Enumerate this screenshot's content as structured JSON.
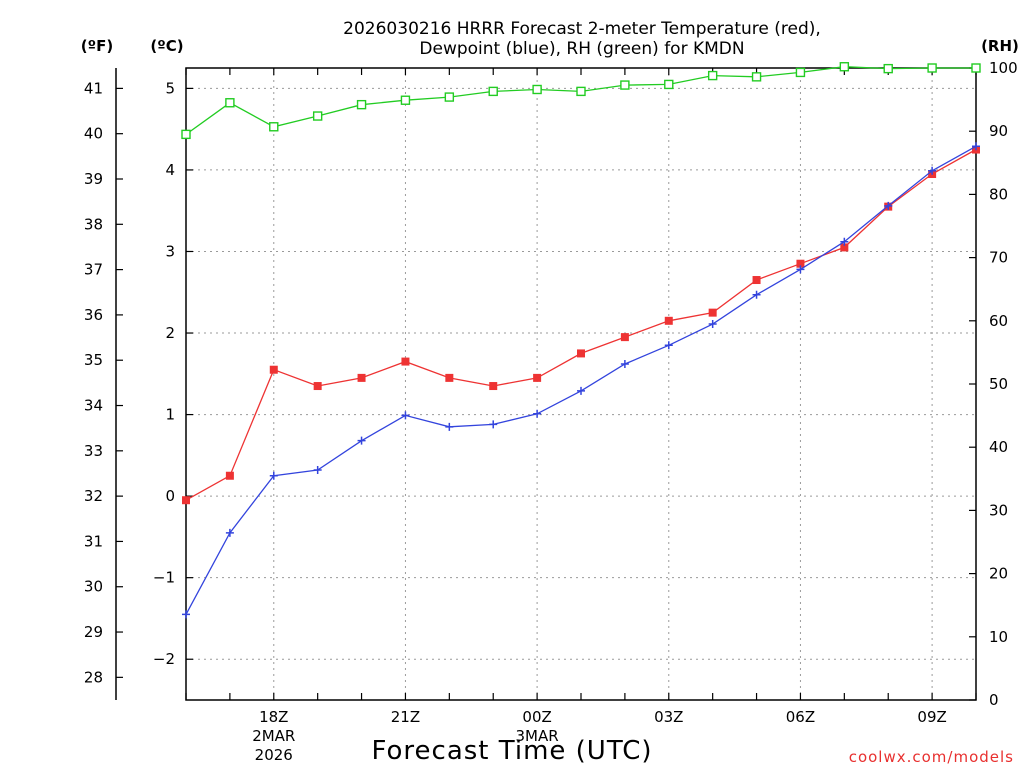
{
  "chart_data": {
    "type": "line",
    "title_lines": [
      "2026030216 HRRR Forecast 2-meter Temperature (red),",
      "Dewpoint (blue), RH (green) for KMDN"
    ],
    "xlabel": "Forecast Time (UTC)",
    "x_hours": [
      16,
      17,
      18,
      19,
      20,
      21,
      22,
      23,
      24,
      25,
      26,
      27,
      28,
      29,
      30,
      31,
      32,
      33,
      34
    ],
    "xlim": [
      16,
      34
    ],
    "x_ticks": [
      {
        "hour": 18,
        "lines": [
          "18Z",
          "2MAR",
          "2026"
        ]
      },
      {
        "hour": 21,
        "lines": [
          "21Z"
        ]
      },
      {
        "hour": 24,
        "lines": [
          "00Z",
          "3MAR"
        ]
      },
      {
        "hour": 27,
        "lines": [
          "03Z"
        ]
      },
      {
        "hour": 30,
        "lines": [
          "06Z"
        ]
      },
      {
        "hour": 33,
        "lines": [
          "09Z"
        ]
      }
    ],
    "axes": {
      "celsius": {
        "unit_label": "(ºC)",
        "range": [
          -2.5,
          5.25
        ],
        "ticks": [
          -2,
          -1,
          0,
          1,
          2,
          3,
          4,
          5
        ]
      },
      "fahrenheit": {
        "unit_label": "(ºF)",
        "ticks": [
          28,
          29,
          30,
          31,
          32,
          33,
          34,
          35,
          36,
          37,
          38,
          39,
          40,
          41
        ]
      },
      "rh": {
        "unit_label": "(RH)",
        "range": [
          0,
          100
        ],
        "ticks": [
          0,
          10,
          20,
          30,
          40,
          50,
          60,
          70,
          80,
          90,
          100
        ]
      }
    },
    "series": [
      {
        "name": "Temperature",
        "axis": "celsius",
        "color": "#ee3333",
        "marker": "filled-square",
        "values": [
          -0.05,
          0.25,
          1.55,
          1.35,
          1.45,
          1.65,
          1.45,
          1.35,
          1.45,
          1.75,
          1.95,
          2.15,
          2.25,
          2.65,
          2.85,
          3.05,
          3.55,
          3.95,
          4.25
        ]
      },
      {
        "name": "Dewpoint",
        "axis": "celsius",
        "color": "#3344dd",
        "marker": "plus",
        "values": [
          -1.45,
          -0.45,
          0.25,
          0.32,
          0.68,
          0.99,
          0.85,
          0.88,
          1.01,
          1.29,
          1.62,
          1.85,
          2.11,
          2.47,
          2.78,
          3.12,
          3.56,
          3.99,
          4.29
        ]
      },
      {
        "name": "RH",
        "axis": "rh",
        "color": "#22cc22",
        "marker": "open-square",
        "values": [
          89.5,
          94.5,
          90.7,
          92.4,
          94.2,
          94.9,
          95.4,
          96.3,
          96.6,
          96.3,
          97.3,
          97.4,
          98.8,
          98.6,
          99.3,
          100.2,
          99.9,
          100.0,
          100.0
        ]
      }
    ],
    "credit": "coolwx.com/models"
  }
}
